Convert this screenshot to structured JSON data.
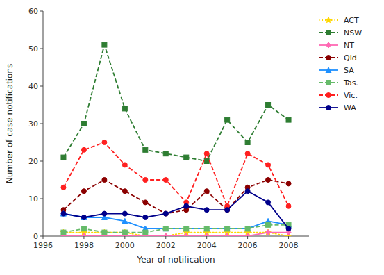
{
  "chart_data": {
    "type": "line",
    "xlabel": "Year of notification",
    "ylabel": "Number of case notifications",
    "x": [
      1997,
      1998,
      1999,
      2000,
      2001,
      2002,
      2003,
      2004,
      2005,
      2006,
      2007,
      2008
    ],
    "series": [
      {
        "name": "ACT",
        "color": "#FFD700",
        "line_style": "dotted",
        "marker": "star",
        "values": [
          1,
          1,
          1,
          1,
          0,
          0,
          1,
          1,
          1,
          1,
          1,
          0
        ]
      },
      {
        "name": "NSW",
        "color": "#2E7D32",
        "line_style": "dashed",
        "marker": "square",
        "values": [
          21,
          30,
          51,
          34,
          23,
          22,
          21,
          20,
          31,
          25,
          35,
          31
        ]
      },
      {
        "name": "NT",
        "color": "#FF69B4",
        "line_style": "solid",
        "marker": "diamond",
        "values": [
          0,
          0,
          0,
          0,
          0,
          0,
          0,
          0,
          0,
          0,
          1,
          1
        ]
      },
      {
        "name": "Qld",
        "color": "#8B0000",
        "line_style": "dashed",
        "marker": "circle",
        "values": [
          7,
          12,
          15,
          12,
          9,
          6,
          7,
          12,
          7,
          13,
          15,
          14
        ]
      },
      {
        "name": "SA",
        "color": "#1E90FF",
        "line_style": "solid",
        "marker": "triangle",
        "values": [
          6,
          5,
          5,
          4,
          2,
          2,
          2,
          2,
          2,
          2,
          4,
          3
        ]
      },
      {
        "name": "Tas.",
        "color": "#66BB6A",
        "line_style": "dashed",
        "marker": "square",
        "values": [
          1,
          2,
          1,
          1,
          1,
          2,
          2,
          2,
          2,
          2,
          3,
          3
        ]
      },
      {
        "name": "Vic.",
        "color": "#FF2020",
        "line_style": "dashed",
        "marker": "circle",
        "values": [
          13,
          23,
          25,
          19,
          15,
          15,
          9,
          22,
          8,
          22,
          19,
          8
        ]
      },
      {
        "name": "WA",
        "color": "#00008B",
        "line_style": "solid",
        "marker": "circle",
        "values": [
          6,
          5,
          6,
          6,
          5,
          6,
          8,
          7,
          7,
          12,
          9,
          2
        ]
      }
    ],
    "xlim": [
      1996,
      2009
    ],
    "ylim": [
      0,
      60
    ],
    "xticks": [
      1996,
      1998,
      2000,
      2002,
      2004,
      2006,
      2008
    ],
    "yticks": [
      0,
      10,
      20,
      30,
      40,
      50,
      60
    ],
    "legend": "upper right"
  }
}
